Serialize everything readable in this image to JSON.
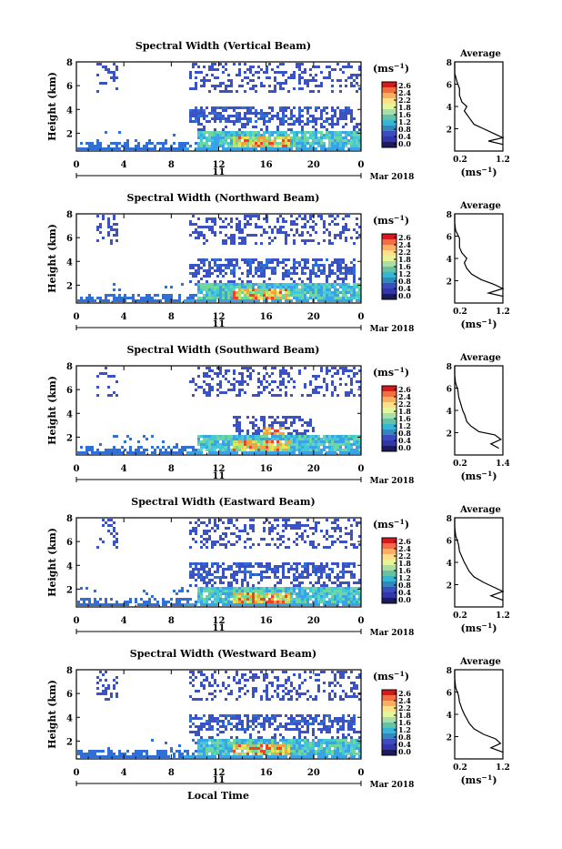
{
  "figure": {
    "xaxis_title": "Local Time",
    "date_label": "Mar 2018",
    "day_label": "11",
    "colorbar_unit": "(ms",
    "colorbar_unit_sup": "−1",
    "colorbar_unit_close": ")",
    "average_title": "Average",
    "average_unit": "(ms",
    "average_unit_sup": "−1",
    "average_unit_close": ")",
    "colorbar_ticks": [
      "2.6",
      "2.4",
      "2.2",
      "1.8",
      "1.6",
      "1.2",
      "0.8",
      "0.4",
      "0.0"
    ],
    "colorbar_colors": [
      "#d7191c",
      "#f46d43",
      "#fdae61",
      "#fee08b",
      "#e6f598",
      "#abdda4",
      "#66c2a5",
      "#36b6d6",
      "#3288bd",
      "#3b4cc0",
      "#3336a8",
      "#1b1b5e"
    ],
    "heatmap_palette": [
      "#3a52c4",
      "#2f6fd6",
      "#3aa3e6",
      "#43c8d6",
      "#6fd6a0",
      "#b6e36a",
      "#f3e05a",
      "#f6a23a",
      "#e8452a"
    ]
  },
  "chart_data": [
    {
      "type": "heatmap",
      "title": "Spectral Width (Vertical Beam)",
      "ylabel": "Height (km)",
      "xlabel": "Local Time",
      "x_ticks": [
        "0",
        "4",
        "8",
        "12",
        "16",
        "20",
        "0"
      ],
      "xlim": [
        0,
        24
      ],
      "y_ticks": [
        "2",
        "4",
        "6",
        "8"
      ],
      "ylim": [
        0.5,
        8
      ],
      "colorbar_range": [
        0.0,
        2.8
      ],
      "average": {
        "xlim": [
          0.2,
          1.2
        ],
        "x_ticks": [
          "0.2",
          "1.2"
        ],
        "ylim": [
          0,
          8
        ],
        "y_ticks": [
          "2",
          "4",
          "6",
          "8"
        ],
        "profile": [
          [
            1.2,
            0.6
          ],
          [
            0.9,
            0.9
          ],
          [
            1.2,
            1.2
          ],
          [
            1.0,
            1.6
          ],
          [
            0.8,
            2.0
          ],
          [
            0.6,
            2.4
          ],
          [
            0.5,
            3.0
          ],
          [
            0.4,
            3.6
          ],
          [
            0.45,
            4.0
          ],
          [
            0.35,
            4.4
          ],
          [
            0.3,
            5.0
          ],
          [
            0.3,
            5.6
          ],
          [
            0.25,
            6.2
          ],
          [
            0.2,
            7.0
          ],
          [
            0.2,
            8.0
          ]
        ]
      }
    },
    {
      "type": "heatmap",
      "title": "Spectral Width (Northward Beam)",
      "ylabel": "Height (km)",
      "xlabel": "Local Time",
      "x_ticks": [
        "0",
        "4",
        "8",
        "12",
        "16",
        "20",
        "0"
      ],
      "xlim": [
        0,
        24
      ],
      "y_ticks": [
        "2",
        "4",
        "6",
        "8"
      ],
      "ylim": [
        0.5,
        8
      ],
      "colorbar_range": [
        0.0,
        2.8
      ],
      "average": {
        "xlim": [
          0.2,
          1.2
        ],
        "x_ticks": [
          "0.2",
          "1.2"
        ],
        "ylim": [
          0,
          8
        ],
        "y_ticks": [
          "2",
          "4",
          "6",
          "8"
        ],
        "profile": [
          [
            1.2,
            0.6
          ],
          [
            0.9,
            0.9
          ],
          [
            1.2,
            1.3
          ],
          [
            1.0,
            1.7
          ],
          [
            0.75,
            2.1
          ],
          [
            0.55,
            2.6
          ],
          [
            0.45,
            3.1
          ],
          [
            0.4,
            3.6
          ],
          [
            0.45,
            4.0
          ],
          [
            0.35,
            4.5
          ],
          [
            0.3,
            5.0
          ],
          [
            0.3,
            5.8
          ],
          [
            0.22,
            6.5
          ],
          [
            0.2,
            7.2
          ],
          [
            0.2,
            8.0
          ]
        ]
      }
    },
    {
      "type": "heatmap",
      "title": "Spectral Width (Southward Beam)",
      "ylabel": "Height (km)",
      "xlabel": "Local Time",
      "x_ticks": [
        "0",
        "4",
        "8",
        "12",
        "16",
        "20",
        "0"
      ],
      "xlim": [
        0,
        24
      ],
      "y_ticks": [
        "2",
        "4",
        "6",
        "8"
      ],
      "ylim": [
        0.5,
        8
      ],
      "colorbar_range": [
        0.0,
        2.8
      ],
      "average": {
        "xlim": [
          0.2,
          1.4
        ],
        "x_ticks": [
          "0.2",
          "1.4"
        ],
        "ylim": [
          0,
          8
        ],
        "y_ticks": [
          "2",
          "4",
          "6",
          "8"
        ],
        "profile": [
          [
            1.3,
            0.6
          ],
          [
            1.1,
            1.0
          ],
          [
            1.35,
            1.4
          ],
          [
            1.2,
            1.8
          ],
          [
            0.8,
            2.1
          ],
          [
            0.6,
            2.6
          ],
          [
            0.5,
            3.0
          ],
          [
            0.45,
            3.6
          ],
          [
            0.4,
            4.0
          ],
          [
            0.35,
            4.6
          ],
          [
            0.3,
            5.2
          ],
          [
            0.28,
            5.8
          ],
          [
            0.22,
            6.5
          ],
          [
            0.2,
            7.2
          ],
          [
            0.2,
            8.0
          ]
        ]
      }
    },
    {
      "type": "heatmap",
      "title": "Spectral Width (Eastward Beam)",
      "ylabel": "Height (km)",
      "xlabel": "Local Time",
      "x_ticks": [
        "0",
        "4",
        "8",
        "12",
        "16",
        "20",
        "0"
      ],
      "xlim": [
        0,
        24
      ],
      "y_ticks": [
        "2",
        "4",
        "6",
        "8"
      ],
      "ylim": [
        0.5,
        8
      ],
      "colorbar_range": [
        0.0,
        2.8
      ],
      "average": {
        "xlim": [
          0.2,
          1.2
        ],
        "x_ticks": [
          "0.2",
          "1.2"
        ],
        "ylim": [
          0,
          8
        ],
        "y_ticks": [
          "2",
          "4",
          "6",
          "8"
        ],
        "profile": [
          [
            1.2,
            0.6
          ],
          [
            0.95,
            1.0
          ],
          [
            1.2,
            1.4
          ],
          [
            1.0,
            1.8
          ],
          [
            0.8,
            2.2
          ],
          [
            0.6,
            2.7
          ],
          [
            0.5,
            3.2
          ],
          [
            0.45,
            3.6
          ],
          [
            0.4,
            4.0
          ],
          [
            0.35,
            4.5
          ],
          [
            0.3,
            5.0
          ],
          [
            0.28,
            5.6
          ],
          [
            0.22,
            6.4
          ],
          [
            0.2,
            7.2
          ],
          [
            0.2,
            8.0
          ]
        ]
      }
    },
    {
      "type": "heatmap",
      "title": "Spectral Width (Westward Beam)",
      "ylabel": "Height (km)",
      "xlabel": "Local Time",
      "x_ticks": [
        "0",
        "4",
        "8",
        "12",
        "16",
        "20",
        "0"
      ],
      "xlim": [
        0,
        24
      ],
      "y_ticks": [
        "2",
        "4",
        "6",
        "8"
      ],
      "ylim": [
        0.5,
        8
      ],
      "colorbar_range": [
        0.0,
        2.8
      ],
      "average": {
        "xlim": [
          0.2,
          1.2
        ],
        "x_ticks": [
          "0.2",
          "1.2"
        ],
        "ylim": [
          0,
          8
        ],
        "y_ticks": [
          "2",
          "4",
          "6",
          "8"
        ],
        "profile": [
          [
            1.2,
            0.6
          ],
          [
            0.95,
            1.0
          ],
          [
            1.15,
            1.4
          ],
          [
            1.05,
            1.8
          ],
          [
            0.8,
            2.2
          ],
          [
            0.6,
            2.7
          ],
          [
            0.5,
            3.2
          ],
          [
            0.45,
            3.6
          ],
          [
            0.4,
            4.0
          ],
          [
            0.35,
            4.5
          ],
          [
            0.3,
            5.1
          ],
          [
            0.28,
            5.7
          ],
          [
            0.22,
            6.4
          ],
          [
            0.2,
            7.2
          ],
          [
            0.2,
            8.0
          ]
        ]
      }
    }
  ]
}
